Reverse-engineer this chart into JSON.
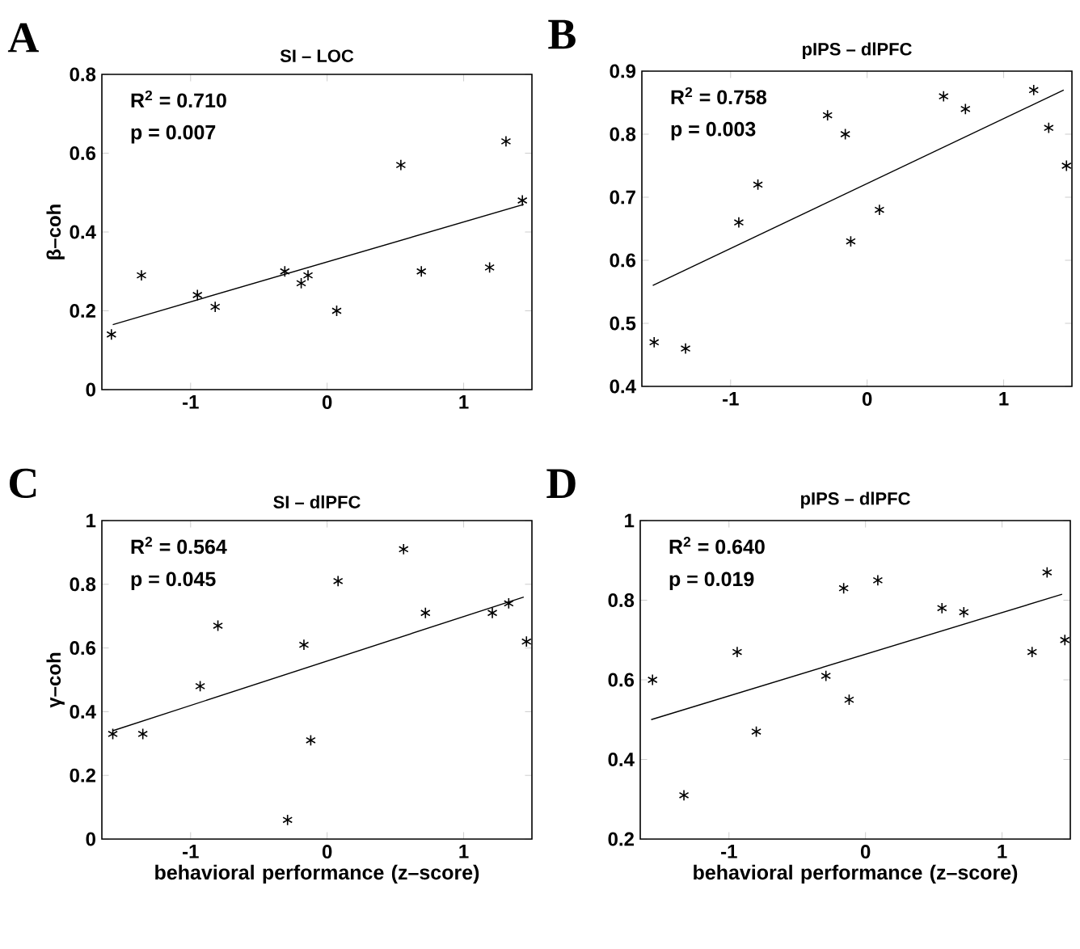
{
  "chart_data": [
    {
      "type": "scatter",
      "title": "SI – LOC",
      "ylabel": "β–coh",
      "marker": "cross",
      "xlim": [
        -1.65,
        1.5
      ],
      "ylim": [
        0,
        0.8
      ],
      "xticks": [
        -1,
        0,
        1
      ],
      "yticks": [
        0,
        0.2,
        0.4,
        0.6,
        0.8
      ],
      "annotations": [
        "A",
        "R$^{2}$ = 0.710",
        "p = 0.007"
      ],
      "series": [
        {
          "color": "#000000",
          "x": [
            -1.58,
            -1.36,
            -0.95,
            -0.82,
            -0.31,
            -0.19,
            -0.14,
            0.07,
            0.54,
            0.69,
            1.19,
            1.31,
            1.43
          ],
          "values": [
            0.14,
            0.29,
            0.24,
            0.21,
            0.3,
            0.27,
            0.29,
            0.2,
            0.57,
            0.3,
            0.31,
            0.63,
            0.48
          ]
        },
        {
          "type": "line",
          "marker": "none",
          "color": "#000000",
          "x": [
            -1.57,
            1.44
          ],
          "values": [
            0.165,
            0.47
          ]
        }
      ]
    },
    {
      "type": "scatter",
      "title": "pIPS – dlPFC",
      "marker": "cross",
      "xlim": [
        -1.65,
        1.5
      ],
      "ylim": [
        0.4,
        0.9
      ],
      "xticks": [
        -1,
        0,
        1
      ],
      "yticks": [
        0.4,
        0.5,
        0.6,
        0.7,
        0.8,
        0.9
      ],
      "annotations": [
        "B",
        "R$^{2}$ = 0.758",
        "p = 0.003"
      ],
      "series": [
        {
          "color": "#000000",
          "x": [
            -1.56,
            -1.33,
            -0.94,
            -0.8,
            -0.29,
            -0.16,
            -0.12,
            0.09,
            0.56,
            0.72,
            1.22,
            1.33,
            1.46
          ],
          "values": [
            0.47,
            0.46,
            0.66,
            0.72,
            0.83,
            0.8,
            0.63,
            0.68,
            0.86,
            0.84,
            0.87,
            0.81,
            0.75
          ]
        },
        {
          "type": "line",
          "marker": "none",
          "color": "#000000",
          "x": [
            -1.57,
            1.44
          ],
          "values": [
            0.56,
            0.87
          ]
        }
      ]
    },
    {
      "type": "scatter",
      "title": "SI – dlPFC",
      "ylabel": "γ–coh",
      "xlabel": "behavioral performance (z–score)",
      "marker": "cross",
      "xlim": [
        -1.65,
        1.5
      ],
      "ylim": [
        0,
        1
      ],
      "xticks": [
        -1,
        0,
        1
      ],
      "yticks": [
        0,
        0.2,
        0.4,
        0.6,
        0.8,
        1
      ],
      "annotations": [
        "C",
        "R$^{2}$ = 0.564",
        "p = 0.045"
      ],
      "series": [
        {
          "color": "#000000",
          "x": [
            -1.57,
            -1.35,
            -0.93,
            -0.8,
            -0.29,
            -0.17,
            -0.12,
            0.08,
            0.56,
            0.72,
            1.21,
            1.33,
            1.46
          ],
          "values": [
            0.33,
            0.33,
            0.48,
            0.67,
            0.06,
            0.61,
            0.31,
            0.81,
            0.91,
            0.71,
            0.71,
            0.74,
            0.62
          ]
        },
        {
          "type": "line",
          "marker": "none",
          "color": "#000000",
          "x": [
            -1.57,
            1.44
          ],
          "values": [
            0.34,
            0.76
          ]
        }
      ]
    },
    {
      "type": "scatter",
      "title": "pIPS – dlPFC",
      "xlabel": "behavioral performance (z–score)",
      "marker": "cross",
      "xlim": [
        -1.65,
        1.5
      ],
      "ylim": [
        0.2,
        1
      ],
      "xticks": [
        -1,
        0,
        1
      ],
      "yticks": [
        0.2,
        0.4,
        0.6,
        0.8,
        1
      ],
      "annotations": [
        "D",
        "R$^{2}$ = 0.640",
        "p = 0.019"
      ],
      "series": [
        {
          "color": "#000000",
          "x": [
            -1.56,
            -1.33,
            -0.94,
            -0.8,
            -0.29,
            -0.16,
            -0.12,
            0.09,
            0.56,
            0.72,
            1.22,
            1.33,
            1.46
          ],
          "values": [
            0.6,
            0.31,
            0.67,
            0.47,
            0.61,
            0.83,
            0.55,
            0.85,
            0.78,
            0.77,
            0.67,
            0.87,
            0.7
          ]
        },
        {
          "type": "line",
          "marker": "none",
          "color": "#000000",
          "x": [
            -1.57,
            1.44
          ],
          "values": [
            0.5,
            0.815
          ]
        }
      ]
    }
  ]
}
